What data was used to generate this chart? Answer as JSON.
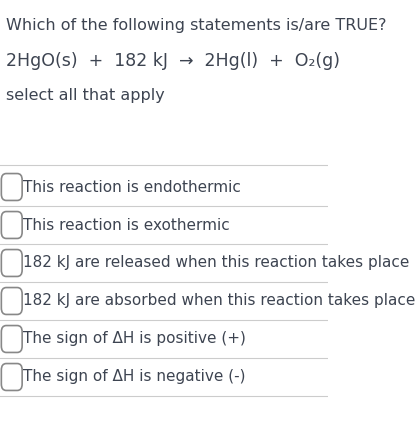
{
  "title_line1": "Which of the following statements is/are TRUE?",
  "equation": "2HgO(s)  +  182 kJ  →  2Hg(l)  +  O₂(g)",
  "subtitle": "select all that apply",
  "options": [
    "This reaction is endothermic",
    "This reaction is exothermic",
    "182 kJ are released when this reaction takes place",
    "182 kJ are absorbed when this reaction takes place",
    "The sign of ΔH is positive (+)",
    "The sign of ΔH is negative (-)"
  ],
  "background_color": "#ffffff",
  "text_color": "#3d4451",
  "line_color": "#cccccc",
  "checkbox_color": "#ffffff",
  "checkbox_edge_color": "#888888",
  "font_size_title": 11.5,
  "font_size_equation": 12.5,
  "font_size_subtitle": 11.5,
  "font_size_options": 11.0
}
